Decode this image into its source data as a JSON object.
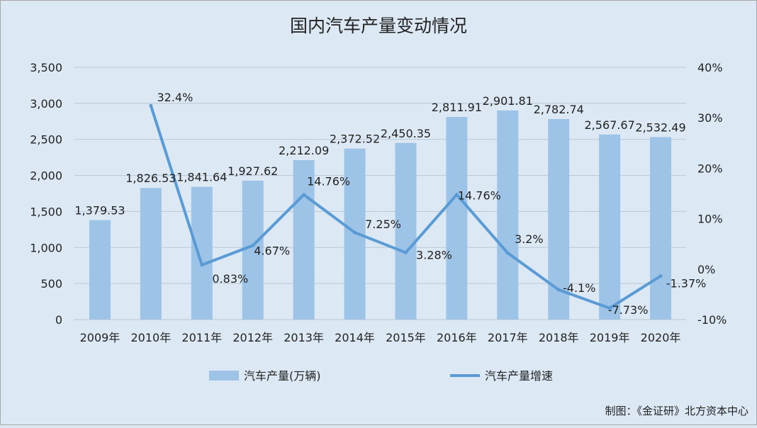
{
  "chart_data": {
    "type": "bar+line",
    "title": "国内汽车产量变动情况",
    "categories": [
      "2009年",
      "2010年",
      "2011年",
      "2012年",
      "2013年",
      "2014年",
      "2015年",
      "2016年",
      "2017年",
      "2018年",
      "2019年",
      "2020年"
    ],
    "series": [
      {
        "name": "汽车产量(万辆)",
        "type": "bar",
        "axis": "left",
        "values": [
          1379.53,
          1826.53,
          1841.64,
          1927.62,
          2212.09,
          2372.52,
          2450.35,
          2811.91,
          2901.81,
          2782.74,
          2567.67,
          2532.49
        ],
        "labels": [
          "1,379.53",
          "1,826.53",
          "1,841.64",
          "1,927.62",
          "2,212.09",
          "2,372.52",
          "2,450.35",
          "2,811.91",
          "2,901.81",
          "2,782.74",
          "2,567.67",
          "2,532.49"
        ]
      },
      {
        "name": "汽车产量增速",
        "type": "line",
        "axis": "right",
        "values": [
          null,
          32.4,
          0.83,
          4.67,
          14.76,
          7.25,
          3.28,
          14.76,
          3.2,
          -4.1,
          -7.73,
          -1.37
        ],
        "labels": [
          null,
          "32.4%",
          "0.83%",
          "4.67%",
          "14.76%",
          "7.25%",
          "3.28%",
          "14.76%",
          "3.2%",
          "-4.1%",
          "-7.73%",
          "-1.37%"
        ]
      }
    ],
    "y_left": {
      "ylim": [
        0,
        3500
      ],
      "ticks": [
        "0",
        "500",
        "1,000",
        "1,500",
        "2,000",
        "2,500",
        "3,000",
        "3,500"
      ]
    },
    "y_right": {
      "ylim": [
        -10,
        40
      ],
      "ticks": [
        "-10%",
        "0%",
        "10%",
        "20%",
        "30%",
        "40%"
      ]
    },
    "grid": true,
    "legend_position": "bottom",
    "colors": {
      "bar": "#9dc3e6",
      "line": "#5b9bd5",
      "background": "#dce9f5",
      "grid": "#b8c7d6",
      "text": "#222222"
    }
  },
  "source_note": "制图：《金证研》北方资本中心"
}
